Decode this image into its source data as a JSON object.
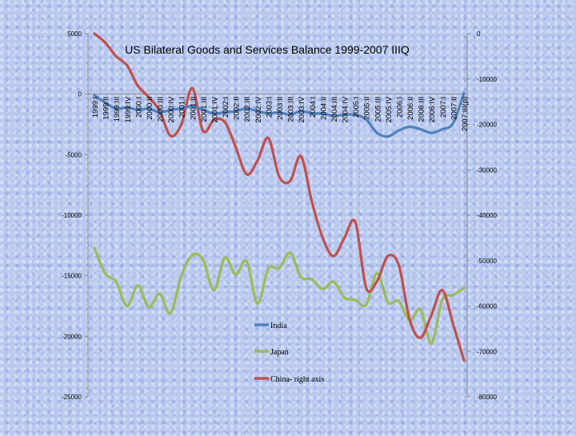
{
  "chart_data": {
    "type": "line",
    "title": "US Bilateral Goods and Services Balance 1999-2007 IIIQ",
    "categories": [
      "1999:I",
      "1999:II",
      "1999:III",
      "1999:IV",
      "2000:I",
      "2000:II",
      "2000:III",
      "2000:IV",
      "2001:I",
      "2001:II",
      "2001:III",
      "2001:IV",
      "2002:I",
      "2002:II",
      "2002:III",
      "2002:IV",
      "2003:I",
      "2003:II",
      "2003:III",
      "2003:IV",
      "2004:I",
      "2004:II",
      "2004:III",
      "2004:IV",
      "2005:I",
      "2005:II",
      "2005:III",
      "2005:IV",
      "2006:I",
      "2006:II",
      "2006:III",
      "2006:IV",
      "2007:I",
      "2007:II",
      "2007:III(p)"
    ],
    "left_axis": {
      "min": -25000,
      "max": 5000,
      "ticks": [
        "5000",
        "0",
        "-5000",
        "-10000",
        "-15000",
        "-20000",
        "-25000"
      ]
    },
    "right_axis": {
      "min": -80000,
      "max": 0,
      "ticks": [
        "0",
        "-10000",
        "-20000",
        "-30000",
        "-40000",
        "-50000",
        "-60000",
        "-70000",
        "-80000"
      ]
    },
    "legend_position": "lower-center",
    "series": [
      {
        "name": "India",
        "axis": "left",
        "color": "#4f81bd",
        "values": [
          -100,
          -700,
          -1200,
          -1100,
          -1300,
          -1200,
          -1500,
          -1300,
          -1200,
          -1000,
          -1300,
          -1600,
          -1500,
          -1400,
          -1200,
          -1400,
          -1600,
          -1500,
          -1700,
          -1400,
          -1600,
          -1600,
          -1800,
          -1700,
          -1700,
          -2100,
          -3200,
          -3500,
          -3000,
          -2700,
          -2900,
          -3200,
          -2900,
          -2400,
          100
        ]
      },
      {
        "name": "Japan",
        "axis": "left",
        "color": "#9bbb59",
        "values": [
          -12700,
          -14800,
          -15500,
          -17500,
          -15800,
          -17600,
          -16500,
          -18100,
          -15000,
          -13300,
          -13700,
          -16200,
          -13500,
          -14900,
          -13800,
          -17300,
          -14400,
          -14400,
          -13100,
          -15100,
          -15300,
          -16100,
          -15500,
          -16800,
          -17000,
          -17400,
          -14800,
          -17200,
          -17100,
          -18700,
          -17800,
          -20600,
          -17000,
          -16600,
          -16000
        ]
      },
      {
        "name": "China- right axis",
        "axis": "right",
        "color": "#c0504d",
        "values": [
          0,
          -2000,
          -5000,
          -7000,
          -11500,
          -14000,
          -17000,
          -22500,
          -20000,
          -12000,
          -21500,
          -19000,
          -19500,
          -25000,
          -31000,
          -28000,
          -23000,
          -31500,
          -32500,
          -27000,
          -37000,
          -45000,
          -49000,
          -45000,
          -41500,
          -56000,
          -54500,
          -49000,
          -51000,
          -63000,
          -67000,
          -62000,
          -56500,
          -64000,
          -72000
        ]
      }
    ]
  }
}
